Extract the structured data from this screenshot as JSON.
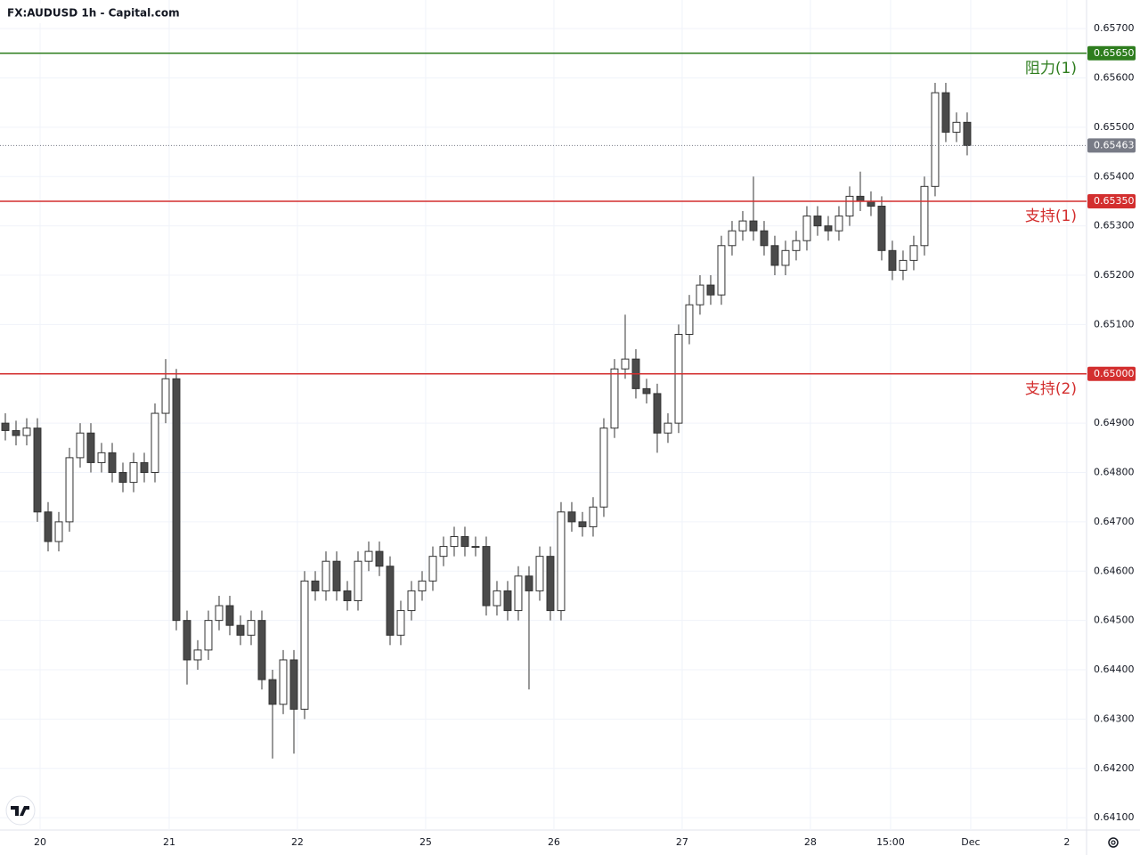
{
  "chart_data": {
    "type": "candlestick",
    "title": "FX:AUDUSD 1h - Capital.com",
    "open": [
      0.649,
      0.64885,
      0.64875,
      0.6489,
      0.6472,
      0.6466,
      0.647,
      0.6483,
      0.6488,
      0.6482,
      0.6484,
      0.648,
      0.6478,
      0.6482,
      0.648,
      0.6492,
      0.6499,
      0.645,
      0.6442,
      0.6444,
      0.645,
      0.6453,
      0.6449,
      0.6447,
      0.645,
      0.6438,
      0.6433,
      0.6442,
      0.6432,
      0.6458,
      0.6456,
      0.6462,
      0.6456,
      0.6454,
      0.6462,
      0.6464,
      0.6461,
      0.6447,
      0.6452,
      0.6456,
      0.6458,
      0.6463,
      0.6465,
      0.6467,
      0.6465,
      0.6465,
      0.6453,
      0.6456,
      0.6452,
      0.6459,
      0.6456,
      0.6463,
      0.6452,
      0.6472,
      0.647,
      0.6469,
      0.6473,
      0.6489,
      0.6501,
      0.6503,
      0.6497,
      0.6496,
      0.6488,
      0.649,
      0.6508,
      0.6514,
      0.6518,
      0.6516,
      0.6526,
      0.6529,
      0.6531,
      0.6529,
      0.6526,
      0.6522,
      0.6525,
      0.6527,
      0.6532,
      0.653,
      0.6529,
      0.6532,
      0.6536,
      0.6535,
      0.6534,
      0.6525,
      0.6521,
      0.6523,
      0.6526,
      0.6538,
      0.6557,
      0.6549,
      0.6551
    ],
    "high": [
      0.6492,
      0.64905,
      0.6491,
      0.6491,
      0.6474,
      0.6472,
      0.6485,
      0.649,
      0.649,
      0.6486,
      0.6486,
      0.6482,
      0.6484,
      0.6484,
      0.6494,
      0.6503,
      0.6501,
      0.6452,
      0.6446,
      0.6452,
      0.6455,
      0.6455,
      0.6451,
      0.6452,
      0.6452,
      0.644,
      0.6444,
      0.6444,
      0.646,
      0.646,
      0.6464,
      0.6464,
      0.6458,
      0.6464,
      0.6466,
      0.6466,
      0.6463,
      0.6454,
      0.6458,
      0.646,
      0.6465,
      0.6467,
      0.6469,
      0.6469,
      0.6467,
      0.6467,
      0.6458,
      0.6458,
      0.6461,
      0.6461,
      0.6465,
      0.6465,
      0.6474,
      0.6474,
      0.6472,
      0.6475,
      0.6491,
      0.6503,
      0.6512,
      0.6505,
      0.6499,
      0.6498,
      0.6492,
      0.651,
      0.6516,
      0.652,
      0.652,
      0.6528,
      0.6531,
      0.6533,
      0.654,
      0.6531,
      0.6528,
      0.6527,
      0.6529,
      0.6534,
      0.6534,
      0.6532,
      0.6534,
      0.6538,
      0.6541,
      0.6537,
      0.6536,
      0.6527,
      0.6525,
      0.6528,
      0.654,
      0.6559,
      0.6559,
      0.6553,
      0.6553
    ],
    "low": [
      0.64865,
      0.64855,
      0.64855,
      0.647,
      0.6464,
      0.6464,
      0.6468,
      0.6481,
      0.648,
      0.648,
      0.6478,
      0.6476,
      0.6476,
      0.6478,
      0.6478,
      0.649,
      0.6448,
      0.6437,
      0.644,
      0.6442,
      0.6448,
      0.6447,
      0.6445,
      0.6445,
      0.6436,
      0.6422,
      0.6431,
      0.6423,
      0.643,
      0.6454,
      0.6454,
      0.6454,
      0.6452,
      0.6452,
      0.646,
      0.6459,
      0.6445,
      0.6445,
      0.645,
      0.6454,
      0.6456,
      0.6461,
      0.6463,
      0.6463,
      0.6463,
      0.6451,
      0.6451,
      0.645,
      0.645,
      0.6436,
      0.6454,
      0.645,
      0.645,
      0.6468,
      0.6467,
      0.6467,
      0.6471,
      0.6487,
      0.6499,
      0.6495,
      0.6494,
      0.6484,
      0.6486,
      0.6488,
      0.6506,
      0.6512,
      0.6514,
      0.6514,
      0.6524,
      0.6527,
      0.6527,
      0.6524,
      0.652,
      0.652,
      0.6523,
      0.6525,
      0.6528,
      0.6527,
      0.6527,
      0.653,
      0.6533,
      0.6532,
      0.6523,
      0.6519,
      0.6519,
      0.6521,
      0.6524,
      0.6536,
      0.6547,
      0.6547,
      0.65443
    ],
    "close": [
      0.64885,
      0.64875,
      0.6489,
      0.6472,
      0.6466,
      0.647,
      0.6483,
      0.6488,
      0.6482,
      0.6484,
      0.648,
      0.6478,
      0.6482,
      0.648,
      0.6492,
      0.6499,
      0.645,
      0.6442,
      0.6444,
      0.645,
      0.6453,
      0.6449,
      0.6447,
      0.645,
      0.6438,
      0.6433,
      0.6442,
      0.6432,
      0.6458,
      0.6456,
      0.6462,
      0.6456,
      0.6454,
      0.6462,
      0.6464,
      0.6461,
      0.6447,
      0.6452,
      0.6456,
      0.6458,
      0.6463,
      0.6465,
      0.6467,
      0.6465,
      0.6465,
      0.6453,
      0.6456,
      0.6452,
      0.6459,
      0.6456,
      0.6463,
      0.6452,
      0.6472,
      0.647,
      0.6469,
      0.6473,
      0.6489,
      0.6501,
      0.6503,
      0.6497,
      0.6496,
      0.6488,
      0.649,
      0.6508,
      0.6514,
      0.6518,
      0.6516,
      0.6526,
      0.6529,
      0.6531,
      0.6529,
      0.6526,
      0.6522,
      0.6525,
      0.6527,
      0.6532,
      0.653,
      0.6529,
      0.6532,
      0.6536,
      0.6535,
      0.6534,
      0.6525,
      0.6521,
      0.6523,
      0.6526,
      0.6538,
      0.6557,
      0.6549,
      0.6551,
      0.65463
    ],
    "up_color": "#ffffff",
    "down_color": "#4a4a4a",
    "outline_color": "#333333",
    "xlim": [
      0,
      101.67
    ],
    "xticks": [
      {
        "value": 3.75,
        "label": "20"
      },
      {
        "value": 15.83,
        "label": "21"
      },
      {
        "value": 27.83,
        "label": "22"
      },
      {
        "value": 39.83,
        "label": "25"
      },
      {
        "value": 51.83,
        "label": "26"
      },
      {
        "value": 63.83,
        "label": "27"
      },
      {
        "value": 75.83,
        "label": "28"
      },
      {
        "value": 83.33,
        "label": "15:00"
      },
      {
        "value": 90.83,
        "label": "Dec"
      },
      {
        "value": 99.83,
        "label": "2"
      }
    ],
    "ylim": [
      0.64075,
      0.65758
    ],
    "yticks": [
      {
        "value": 0.657,
        "label": "0.65700"
      },
      {
        "value": 0.656,
        "label": "0.65600"
      },
      {
        "value": 0.655,
        "label": "0.65500"
      },
      {
        "value": 0.654,
        "label": "0.65400"
      },
      {
        "value": 0.653,
        "label": "0.65300"
      },
      {
        "value": 0.652,
        "label": "0.65200"
      },
      {
        "value": 0.651,
        "label": "0.65100"
      },
      {
        "value": 0.65,
        "label": "0.65000"
      },
      {
        "value": 0.649,
        "label": "0.64900"
      },
      {
        "value": 0.648,
        "label": "0.64800"
      },
      {
        "value": 0.647,
        "label": "0.64700"
      },
      {
        "value": 0.646,
        "label": "0.64600"
      },
      {
        "value": 0.645,
        "label": "0.64500"
      },
      {
        "value": 0.644,
        "label": "0.64400"
      },
      {
        "value": 0.643,
        "label": "0.64300"
      },
      {
        "value": 0.642,
        "label": "0.64200"
      },
      {
        "value": 0.641,
        "label": "0.64100"
      }
    ],
    "grid": true,
    "levels": [
      {
        "name": "阻力(1)",
        "value": 0.6565,
        "label": "0.65650",
        "color": "#2e7d1e"
      },
      {
        "name": "支持(1)",
        "value": 0.6535,
        "label": "0.65350",
        "color": "#d32f2f"
      },
      {
        "name": "支持(2)",
        "value": 0.65,
        "label": "0.65000",
        "color": "#d32f2f"
      }
    ],
    "last_price": {
      "value": 0.65463,
      "label": "0.65463",
      "color": "#787b86"
    }
  }
}
